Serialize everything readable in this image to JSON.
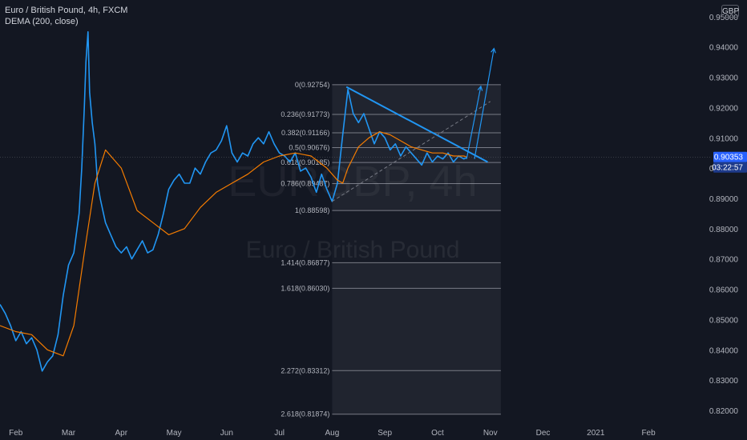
{
  "header": {
    "title": "Euro / British Pound, 4h, FXCM",
    "indicator": "DEMA (200, close)"
  },
  "watermark": {
    "symbol": "EURGBP, 4h",
    "name": "Euro / British Pound"
  },
  "currency_badge": "GBP",
  "price_tag": {
    "value": "0.90353",
    "countdown": "03:22:57"
  },
  "colors": {
    "background": "#131722",
    "price_line": "#2196f3",
    "dema_line": "#f57c00",
    "fib_line": "#787b86",
    "axis_text": "#b2b5be",
    "price_tag": "#2962ff"
  },
  "chart_data": {
    "type": "line",
    "title": "Euro / British Pound, 4h, FXCM",
    "xlabel": "",
    "ylabel": "",
    "x_ticks": [
      "Feb",
      "Mar",
      "Apr",
      "May",
      "Jun",
      "Jul",
      "Aug",
      "Sep",
      "Oct",
      "Nov",
      "Dec",
      "2021",
      "Feb"
    ],
    "x_tick_month_index": [
      1,
      2,
      3,
      4,
      5,
      6,
      7,
      8,
      9,
      10,
      11,
      12,
      13
    ],
    "xlim_month_index": [
      0.7,
      14.2
    ],
    "y_ticks": [
      "0.95000",
      "0.94000",
      "0.93000",
      "0.92000",
      "0.91000",
      "0.90000",
      "0.89000",
      "0.88000",
      "0.87000",
      "0.86000",
      "0.85000",
      "0.84000",
      "0.83000",
      "0.82000"
    ],
    "ylim": [
      0.8155,
      0.9555
    ],
    "series": [
      {
        "name": "",
        "color": "#2196f3",
        "x": [
          0.7,
          0.8,
          0.9,
          1.0,
          1.1,
          1.2,
          1.3,
          1.4,
          1.5,
          1.6,
          1.7,
          1.8,
          1.9,
          2.0,
          2.1,
          2.2,
          2.25,
          2.3,
          2.33,
          2.37,
          2.4,
          2.45,
          2.5,
          2.55,
          2.6,
          2.7,
          2.8,
          2.9,
          3.0,
          3.1,
          3.2,
          3.3,
          3.4,
          3.5,
          3.6,
          3.7,
          3.8,
          3.9,
          4.0,
          4.1,
          4.2,
          4.3,
          4.4,
          4.5,
          4.6,
          4.7,
          4.8,
          4.9,
          5.0,
          5.1,
          5.2,
          5.3,
          5.4,
          5.5,
          5.6,
          5.7,
          5.8,
          5.9,
          6.0,
          6.1,
          6.2,
          6.3,
          6.4,
          6.5,
          6.6,
          6.7,
          6.8,
          6.9,
          7.0,
          7.1,
          7.2,
          7.3,
          7.4,
          7.5,
          7.6,
          7.7,
          7.8,
          7.9,
          8.0,
          8.1,
          8.2,
          8.3,
          8.4,
          8.5,
          8.6,
          8.7,
          8.8,
          8.9,
          9.0,
          9.1,
          9.2,
          9.3,
          9.4,
          9.5,
          9.55
        ],
        "y": [
          0.855,
          0.852,
          0.848,
          0.843,
          0.846,
          0.842,
          0.844,
          0.84,
          0.833,
          0.836,
          0.838,
          0.845,
          0.858,
          0.868,
          0.872,
          0.885,
          0.9,
          0.92,
          0.935,
          0.945,
          0.925,
          0.915,
          0.908,
          0.895,
          0.89,
          0.882,
          0.878,
          0.874,
          0.872,
          0.874,
          0.87,
          0.873,
          0.876,
          0.872,
          0.873,
          0.878,
          0.885,
          0.893,
          0.896,
          0.898,
          0.895,
          0.895,
          0.9,
          0.898,
          0.902,
          0.905,
          0.906,
          0.909,
          0.914,
          0.905,
          0.902,
          0.905,
          0.904,
          0.908,
          0.91,
          0.908,
          0.912,
          0.908,
          0.905,
          0.904,
          0.902,
          0.905,
          0.899,
          0.9,
          0.897,
          0.892,
          0.898,
          0.893,
          0.889,
          0.895,
          0.911,
          0.926,
          0.918,
          0.915,
          0.918,
          0.913,
          0.908,
          0.912,
          0.91,
          0.906,
          0.908,
          0.904,
          0.907,
          0.905,
          0.903,
          0.901,
          0.905,
          0.902,
          0.904,
          0.903,
          0.905,
          0.902,
          0.904,
          0.903,
          0.9035
        ]
      },
      {
        "name": "DEMA (200, close)",
        "color": "#f57c00",
        "x": [
          0.7,
          1.0,
          1.3,
          1.6,
          1.9,
          2.1,
          2.3,
          2.5,
          2.7,
          3.0,
          3.3,
          3.6,
          3.9,
          4.2,
          4.5,
          4.8,
          5.1,
          5.4,
          5.7,
          6.0,
          6.3,
          6.6,
          6.9,
          7.1,
          7.2,
          7.3,
          7.5,
          7.7,
          7.9,
          8.1,
          8.3,
          8.5,
          8.7,
          8.9,
          9.1,
          9.3,
          9.5,
          9.55
        ],
        "y": [
          0.848,
          0.846,
          0.845,
          0.84,
          0.838,
          0.848,
          0.872,
          0.895,
          0.906,
          0.9,
          0.886,
          0.882,
          0.878,
          0.88,
          0.887,
          0.892,
          0.895,
          0.898,
          0.902,
          0.904,
          0.905,
          0.904,
          0.9,
          0.896,
          0.895,
          0.9,
          0.907,
          0.91,
          0.912,
          0.911,
          0.909,
          0.907,
          0.906,
          0.905,
          0.905,
          0.904,
          0.904,
          0.9037
        ]
      }
    ],
    "fibonacci": {
      "x_start": 7.0,
      "x_end": 10.2,
      "levels": [
        {
          "label": "0(0.92754)",
          "ratio": 0,
          "price": 0.92754
        },
        {
          "label": "0.236(0.91773)",
          "ratio": 0.236,
          "price": 0.91773
        },
        {
          "label": "0.382(0.91166)",
          "ratio": 0.382,
          "price": 0.91166
        },
        {
          "label": "0.5(0.90676)",
          "ratio": 0.5,
          "price": 0.90676
        },
        {
          "label": "0.618(0.90185)",
          "ratio": 0.618,
          "price": 0.90185
        },
        {
          "label": "0.786(0.89487)",
          "ratio": 0.786,
          "price": 0.89487
        },
        {
          "label": "1(0.88598)",
          "ratio": 1,
          "price": 0.88598
        },
        {
          "label": "1.414(0.86877)",
          "ratio": 1.414,
          "price": 0.86877
        },
        {
          "label": "1.618(0.86030)",
          "ratio": 1.618,
          "price": 0.8603
        },
        {
          "label": "2.272(0.83312)",
          "ratio": 2.272,
          "price": 0.83312
        },
        {
          "label": "2.618(0.81874)",
          "ratio": 2.618,
          "price": 0.81874
        }
      ]
    },
    "trendlines": [
      {
        "kind": "descending",
        "from": [
          7.27,
          0.9268
        ],
        "to": [
          9.95,
          0.902
        ]
      },
      {
        "kind": "dashed-ascending",
        "from": [
          7.0,
          0.889
        ],
        "to": [
          10.0,
          0.922
        ]
      }
    ],
    "projection_arrows": [
      {
        "from": [
          9.55,
          0.903
        ],
        "to": [
          9.82,
          0.927
        ]
      },
      {
        "from": [
          9.7,
          0.903
        ],
        "to": [
          10.07,
          0.9395
        ]
      }
    ],
    "grid": false,
    "legend": "top-left"
  }
}
